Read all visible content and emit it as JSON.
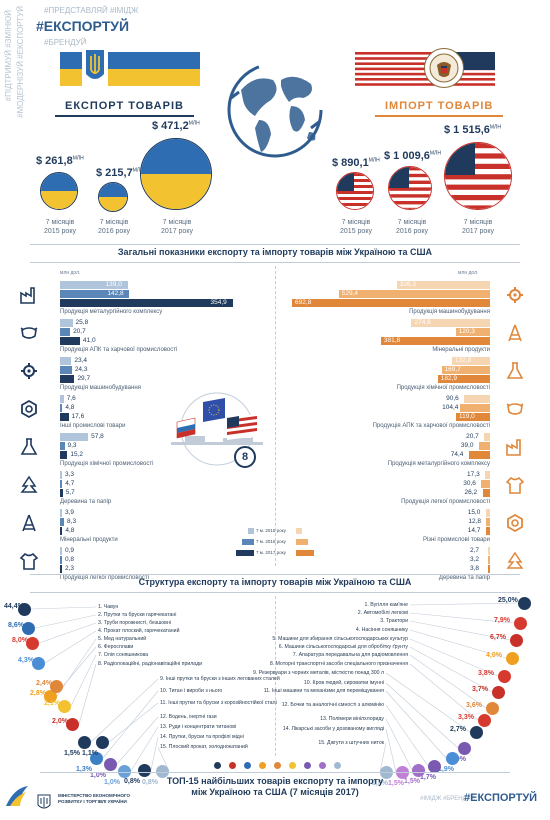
{
  "header": {
    "hashtags_top": "#ПРЕДСТАВЛЯЙ #ІМІДЖ",
    "hashtag_main": "#ЕКСПОРТУЙ",
    "hashtag_sub": "#БРЕНДУЙ",
    "vertical_left": "#ПІДТРИМУЙ #ЗМІНЮЙ",
    "vertical_left2": "#МОДЕРНІЗУЙ #ЕКСПОРТУЙ"
  },
  "export": {
    "title": "ЕКСПОРТ ТОВАРІВ",
    "items": [
      {
        "amount": "$ 261,8",
        "unit": "МЛН",
        "period_a": "7 місяців",
        "period_b": "2015 року"
      },
      {
        "amount": "$ 215,7",
        "unit": "МЛН",
        "period_a": "7 місяців",
        "period_b": "2016 року"
      },
      {
        "amount": "$ 471,2",
        "unit": "МЛН",
        "period_a": "7 місяців",
        "period_b": "2017 року"
      }
    ]
  },
  "import": {
    "title": "ІМПОРТ ТОВАРІВ",
    "items": [
      {
        "amount": "$ 890,1",
        "unit": "МЛН",
        "period_a": "7 місяців",
        "period_b": "2015 року"
      },
      {
        "amount": "$ 1 009,6",
        "unit": "МЛН",
        "period_a": "7 місяців",
        "period_b": "2016 року"
      },
      {
        "amount": "$ 1 515,6",
        "unit": "МЛН",
        "period_a": "7 місяців",
        "period_b": "2017 року"
      }
    ]
  },
  "general": {
    "title": "Загальні показники експорту та імпорту товарів між Україною та США",
    "unit_left": "млн дол.",
    "unit_right": "млн дол.",
    "export_groups": [
      {
        "label": "Продукція металургійного комплексу",
        "icon": "factory-icon",
        "values": [
          "139,0",
          "142,8",
          "354,9"
        ]
      },
      {
        "label": "Продукція АПК та харчової промисловості",
        "icon": "cow-wheat-icon",
        "values": [
          "25,8",
          "20,7",
          "41,0"
        ]
      },
      {
        "label": "Продукція машинобудування",
        "icon": "gear-icon",
        "values": [
          "23,4",
          "24,3",
          "29,7"
        ]
      },
      {
        "label": "Інші промислові товари",
        "icon": "bolt-nut-icon",
        "values": [
          "7,6",
          "4,8",
          "17,6"
        ]
      },
      {
        "label": "Продукція хімічної промисловості",
        "icon": "flask-icon",
        "values": [
          "57,8",
          "9,3",
          "15,2"
        ]
      },
      {
        "label": "Деревина та папір",
        "icon": "tree-icon",
        "values": [
          "3,3",
          "4,7",
          "5,7"
        ]
      },
      {
        "label": "Мінеральні продукти",
        "icon": "oil-rig-icon",
        "values": [
          "3,9",
          "8,3",
          "4,8"
        ]
      },
      {
        "label": "Продукція легкої промисловості",
        "icon": "tshirt-icon",
        "values": [
          "0,9",
          "0,8",
          "2,3"
        ]
      }
    ],
    "import_groups": [
      {
        "label": "Продукція машинобудування",
        "icon": "gear-icon",
        "values": [
          "326,3",
          "529,4",
          "692,8"
        ]
      },
      {
        "label": "Мінеральні продукти",
        "icon": "oil-rig-icon",
        "values": [
          "274,8",
          "120,3",
          "381,8"
        ]
      },
      {
        "label": "Продукція хімічної промисловості",
        "icon": "flask-icon",
        "values": [
          "132,8",
          "169,7",
          "182,9"
        ]
      },
      {
        "label": "Продукція АПК та харчової промисловості",
        "icon": "cow-wheat-icon",
        "values": [
          "90,6",
          "104,4",
          "119,0"
        ]
      },
      {
        "label": "Продукція металургійного комплексу",
        "icon": "factory-icon",
        "values": [
          "20,7",
          "39,0",
          "74,4"
        ]
      },
      {
        "label": "Продукція легкої промисловості",
        "icon": "tshirt-icon",
        "values": [
          "17,3",
          "30,6",
          "26,2"
        ]
      },
      {
        "label": "Різні промислові товари",
        "icon": "bolt-nut-icon",
        "values": [
          "15,0",
          "12,8",
          "14,7"
        ]
      },
      {
        "label": "Деревина та папір",
        "icon": "tree-icon",
        "values": [
          "2,7",
          "3,2",
          "3,8"
        ]
      }
    ],
    "legend": [
      "7 м. 2015 року",
      "7 м. 2016 року",
      "7 м. 2017 року"
    ],
    "badge": "8"
  },
  "structure": {
    "title": "Структура експорту та імпорту товарів між Україною та США",
    "export_items": [
      {
        "n": "1.",
        "label": "Чавун",
        "pct": "44,4",
        "color": "#1f3a5c"
      },
      {
        "n": "2.",
        "label": "Прутки та бруски гарячекатані",
        "pct": "8,6",
        "color": "#2f6db3"
      },
      {
        "n": "3.",
        "label": "Труби порожнисті, безшовні",
        "pct": "8,0",
        "color": "#d63a2f"
      },
      {
        "n": "4.",
        "label": "Прокат плоский, гарячекатаний",
        "pct": "4,3",
        "color": "#4a8ed6"
      },
      {
        "n": "5.",
        "label": "Мед натуральний",
        "pct": "2,8",
        "color": "#f0a020"
      },
      {
        "n": "6.",
        "label": "Феросплави",
        "pct": "2,4",
        "color": "#e0873a"
      },
      {
        "n": "7.",
        "label": "Олія соняшникова",
        "pct": "2,1",
        "color": "#f2c230"
      },
      {
        "n": "8.",
        "label": "Радіолокаційні, радіонавігаційні прилади",
        "pct": "2,0",
        "color": "#c8302a"
      },
      {
        "n": "9.",
        "label": "Інші прутки та бруски з інших легованих сталей",
        "pct": "1,5",
        "color": "#1f3a5c"
      },
      {
        "n": "10.",
        "label": "Титан і вироби з нього",
        "pct": "1,3",
        "color": "#3b7fc4"
      },
      {
        "n": "11.",
        "label": "Інші прутки та бруски з корозійностійкої сталі",
        "pct": "1,1",
        "color": "#1f3a5c"
      },
      {
        "n": "12.",
        "label": "Водень, інертні гази",
        "pct": "1,0",
        "color": "#7a5ab0"
      },
      {
        "n": "13.",
        "label": "Руди і концентрати титанові",
        "pct": "1,0",
        "color": "#6aa0d8"
      },
      {
        "n": "14.",
        "label": "Прутки, бруски та профілі мідні",
        "pct": "0,8",
        "color": "#1f3a5c"
      },
      {
        "n": "15.",
        "label": "Плоский прокат, холоднокатаний",
        "pct": "0,8",
        "color": "#a0b8d0"
      }
    ],
    "import_items": [
      {
        "n": "1.",
        "label": "Вугілля кам'яне",
        "pct": "25,0",
        "color": "#1f3a5c"
      },
      {
        "n": "2.",
        "label": "Автомобілі легкові",
        "pct": "7,9",
        "color": "#d63a2f"
      },
      {
        "n": "3.",
        "label": "Трактори",
        "pct": "6,7",
        "color": "#c8302a"
      },
      {
        "n": "4.",
        "label": "Насіння соняшнику",
        "pct": "4,0",
        "color": "#f0a020"
      },
      {
        "n": "5.",
        "label": "Машини для збирання сільськогосподарських культур",
        "pct": "3,8",
        "color": "#d63a2f"
      },
      {
        "n": "6.",
        "label": "Машини сільськогосподарські для обробітку ґрунту",
        "pct": "3,7",
        "color": "#c8302a"
      },
      {
        "n": "7.",
        "label": "Апаратура передавальна для радіомовлення",
        "pct": "3,6",
        "color": "#e0873a"
      },
      {
        "n": "8.",
        "label": "Моторні транспортні засоби спеціального призначення",
        "pct": "3,3",
        "color": "#d63a2f"
      },
      {
        "n": "9.",
        "label": "Резервуари з чорних металів, місткістю понад 300 л",
        "pct": "2,7",
        "color": "#1f3a5c"
      },
      {
        "n": "10.",
        "label": "Кров людей, сироватки імунні",
        "pct": "2,0",
        "color": "#7a5ab0"
      },
      {
        "n": "11.",
        "label": "Інші машини та механізми для переміщування",
        "pct": "1,9",
        "color": "#4a8ed6"
      },
      {
        "n": "12.",
        "label": "Бочки та аналогічні ємності з алюмінію",
        "pct": "1,7",
        "color": "#7a5ab0"
      },
      {
        "n": "13.",
        "label": "Полімери вінілхлориду",
        "pct": "1,5",
        "color": "#a070c8"
      },
      {
        "n": "14.",
        "label": "Лікарські засоби у дозованому вигляді",
        "pct": "1,5",
        "color": "#c080d8"
      },
      {
        "n": "15.",
        "label": "Джгути з штучних ниток",
        "pct": "1,5",
        "color": "#a0b8d0"
      }
    ],
    "pct_unit": "%"
  },
  "footer": {
    "title_line1": "ТОП-15 найбільших товарів експорту та імпорту",
    "title_line2": "між Україною та США (7 місяців 2017)",
    "ministry": "МІНІСТЕРСТВО ЕКОНОМІЧНОГО РОЗВИТКУ І ТОРГІВЛІ УКРАЇНИ",
    "hashtag_small": "#ІМІДЖ #БРЕНДУЙ",
    "hashtag_main": "#ЕКСПОРТУЙ"
  }
}
